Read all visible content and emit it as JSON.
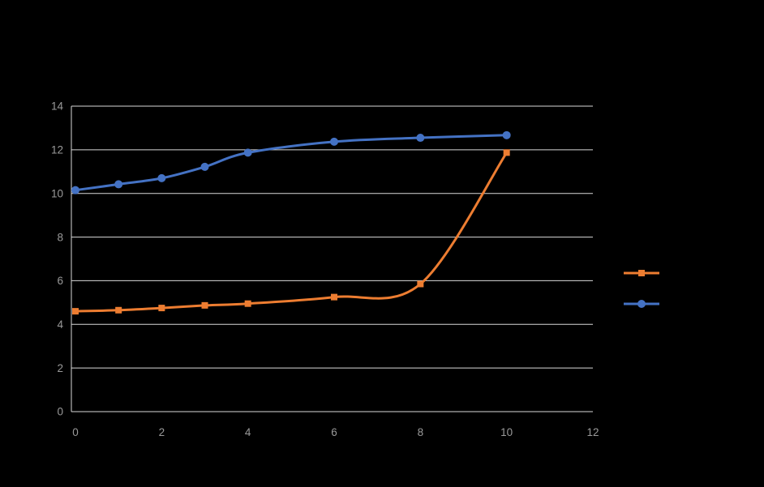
{
  "chart_data": {
    "type": "line",
    "title": "",
    "xlabel": "",
    "ylabel": "",
    "x": [
      0,
      1,
      2,
      3,
      4,
      6,
      8,
      10
    ],
    "series": [
      {
        "name": "",
        "color": "#ED7D31",
        "marker": "square",
        "values": [
          4.6,
          4.65,
          4.75,
          4.87,
          4.95,
          5.25,
          5.85,
          11.87
        ]
      },
      {
        "name": "",
        "color": "#4472C4",
        "marker": "circle",
        "values": [
          10.15,
          10.42,
          10.7,
          11.22,
          11.87,
          12.37,
          12.55,
          12.67
        ]
      }
    ],
    "xlim": [
      0,
      12
    ],
    "ylim": [
      0,
      14
    ],
    "x_ticks": [
      0,
      2,
      4,
      6,
      8,
      10,
      12
    ],
    "y_ticks": [
      0,
      2,
      4,
      6,
      8,
      10,
      12,
      14
    ],
    "grid": "horizontal",
    "smooth": true,
    "legend_position": "right",
    "background": "#000000",
    "grid_color": "#d9d9d9",
    "tick_color": "#9a9a9a"
  }
}
